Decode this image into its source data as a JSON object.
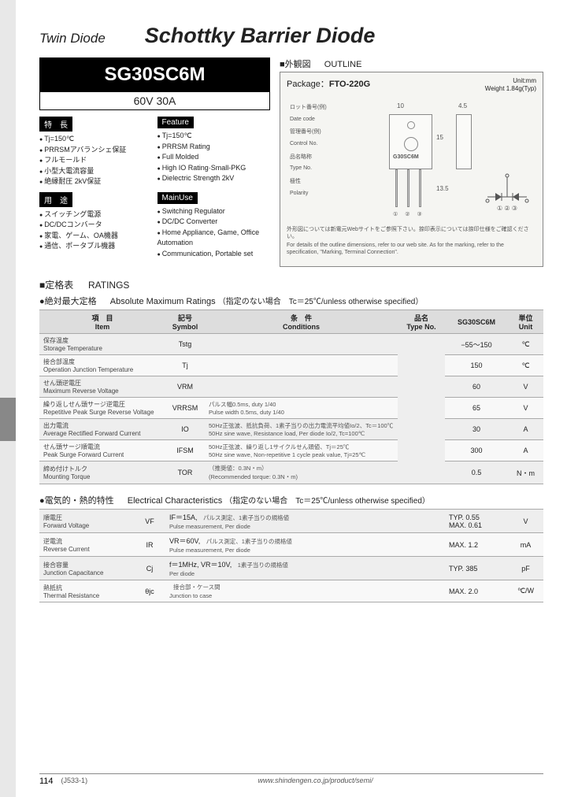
{
  "header": {
    "category": "Twin Diode",
    "title": "Schottky Barrier Diode"
  },
  "part": {
    "number": "SG30SC6M",
    "rating": "60V 30A"
  },
  "features": {
    "jp_header": "特　長",
    "en_header": "Feature",
    "jp": [
      "Tj=150℃",
      "PRRSMアバランシェ保証",
      "フルモールド",
      "小型大電流容量",
      "絶縁耐圧 2kV保証"
    ],
    "en": [
      "Tj=150℃",
      "PRRSM Rating",
      "Full Molded",
      "High IO Rating·Small-PKG",
      "Dielectric Strength 2kV"
    ]
  },
  "uses": {
    "jp_header": "用　途",
    "en_header": "MainUse",
    "jp": [
      "スイッチング電源",
      "DC/DCコンバータ",
      "家電、ゲーム、OA機器",
      "通信、ポータブル機器"
    ],
    "en": [
      "Switching Regulator",
      "DC/DC Converter",
      "Home Appliance, Game, Office Automation",
      "Communication, Portable set"
    ]
  },
  "outline": {
    "title_jp": "■外観図",
    "title_en": "OUTLINE",
    "package_label": "Package：",
    "package": "FTO-220G",
    "unit": "Unit:mm",
    "weight": "Weight 1.84g(Typ)",
    "labels": {
      "lot": "ロット番号(例)\nDate code",
      "ctrl": "管理番号(例)\nControl No.",
      "type": "品名略称\nType No.",
      "polarity": "極性\nPolarity"
    },
    "dim_w": "10",
    "dim_t": "4.5",
    "dim_h1": "15",
    "dim_h2": "13.5",
    "marking": "G30SC6M",
    "pins": "①②③",
    "pin_labels": "① ② ③",
    "note_jp": "外形図については新電元Webサイトをご参照下さい。捺印表示については捺印仕様をご確認ください。",
    "note_en": "For details of the outline dimensions, refer to our web site. As for the marking, refer to the specification, \"Marking, Terminal Connection\"."
  },
  "ratings": {
    "section_jp": "■定格表",
    "section_en": "RATINGS",
    "abs_jp": "●絶対最大定格",
    "abs_en": "Absolute Maximum Ratings",
    "abs_cond": "（指定のない場合　Tc＝25℃/unless otherwise specified）",
    "headers": {
      "item_jp": "項　目",
      "item_en": "Item",
      "sym_jp": "記号",
      "sym_en": "Symbol",
      "cond_jp": "条　件",
      "cond_en": "Conditions",
      "type_jp": "品名",
      "type_en": "Type No.",
      "unit_jp": "単位",
      "unit_en": "Unit"
    },
    "type_col": "SG30SC6M",
    "rows": [
      {
        "jp": "保存温度",
        "en": "Storage Temperature",
        "sym": "Tstg",
        "cond": "",
        "val": "−55～150",
        "unit": "℃"
      },
      {
        "jp": "接合部温度",
        "en": "Operation Junction Temperature",
        "sym": "Tj",
        "cond": "",
        "val": "150",
        "unit": "℃"
      },
      {
        "jp": "せん頭逆電圧",
        "en": "Maximum Reverse Voltage",
        "sym": "VRM",
        "cond": "",
        "val": "60",
        "unit": "V"
      },
      {
        "jp": "繰り返しせん頭サージ逆電圧",
        "en": "Repetitive Peak Surge Reverse Voltage",
        "sym": "VRRSM",
        "cond_jp": "パルス幅0.5ms, duty 1/40",
        "cond_en": "Pulse width 0.5ms, duty 1/40",
        "val": "65",
        "unit": "V"
      },
      {
        "jp": "出力電流",
        "en": "Average Rectified Forward Current",
        "sym": "IO",
        "cond_jp": "50Hz正弦波、抵抗負荷、1素子当りの出力電流平均値Io/2、Tc＝100℃",
        "cond_en": "50Hz sine wave, Resistance load, Per diode Io/2, Tc=100℃",
        "val": "30",
        "unit": "A"
      },
      {
        "jp": "せん頭サージ順電流",
        "en": "Peak Surge Forward Current",
        "sym": "IFSM",
        "cond_jp": "50Hz正弦波、繰り返し1サイクルせん頭値、Tj＝25℃",
        "cond_en": "50Hz sine wave, Non-repetitive 1 cycle peak value, Tj=25℃",
        "val": "300",
        "unit": "A"
      },
      {
        "jp": "締め付けトルク",
        "en": "Mounting Torque",
        "sym": "TOR",
        "cond_jp": "（推奨値：0.3N・m）",
        "cond_en": "(Recommended torque: 0.3N・m)",
        "val": "0.5",
        "unit": "N・m"
      }
    ]
  },
  "elec": {
    "title_jp": "●電気的・熱的特性",
    "title_en": "Electrical Characteristics",
    "title_cond": "（指定のない場合　Tc＝25℃/unless otherwise specified）",
    "rows": [
      {
        "jp": "順電圧",
        "en": "Forward Voltage",
        "sym": "VF",
        "cond": "IF＝15A,",
        "cond2_jp": "パルス測定、1素子当りの規格値",
        "cond2_en": "Pulse measurement, Per diode",
        "val": "TYP. 0.55\nMAX. 0.61",
        "unit": "V"
      },
      {
        "jp": "逆電流",
        "en": "Reverse Current",
        "sym": "IR",
        "cond": "VR＝60V,",
        "cond2_jp": "パルス測定、1素子当りの規格値",
        "cond2_en": "Pulse measurement, Per diode",
        "val": "MAX. 1.2",
        "unit": "mA"
      },
      {
        "jp": "接合容量",
        "en": "Junction Capacitance",
        "sym": "Cj",
        "cond": "f＝1MHz, VR＝10V,",
        "cond2_jp": "1素子当りの規格値",
        "cond2_en": "Per diode",
        "val": "TYP. 385",
        "unit": "pF"
      },
      {
        "jp": "熱抵抗",
        "en": "Thermal Resistance",
        "sym": "θjc",
        "cond": "",
        "cond2_jp": "接合部・ケース間",
        "cond2_en": "Junction to case",
        "val": "MAX. 2.0",
        "unit": "℃/W"
      }
    ]
  },
  "footer": {
    "page": "114",
    "doc": "(J533-1)",
    "url": "www.shindengen.co.jp/product/semi/"
  }
}
